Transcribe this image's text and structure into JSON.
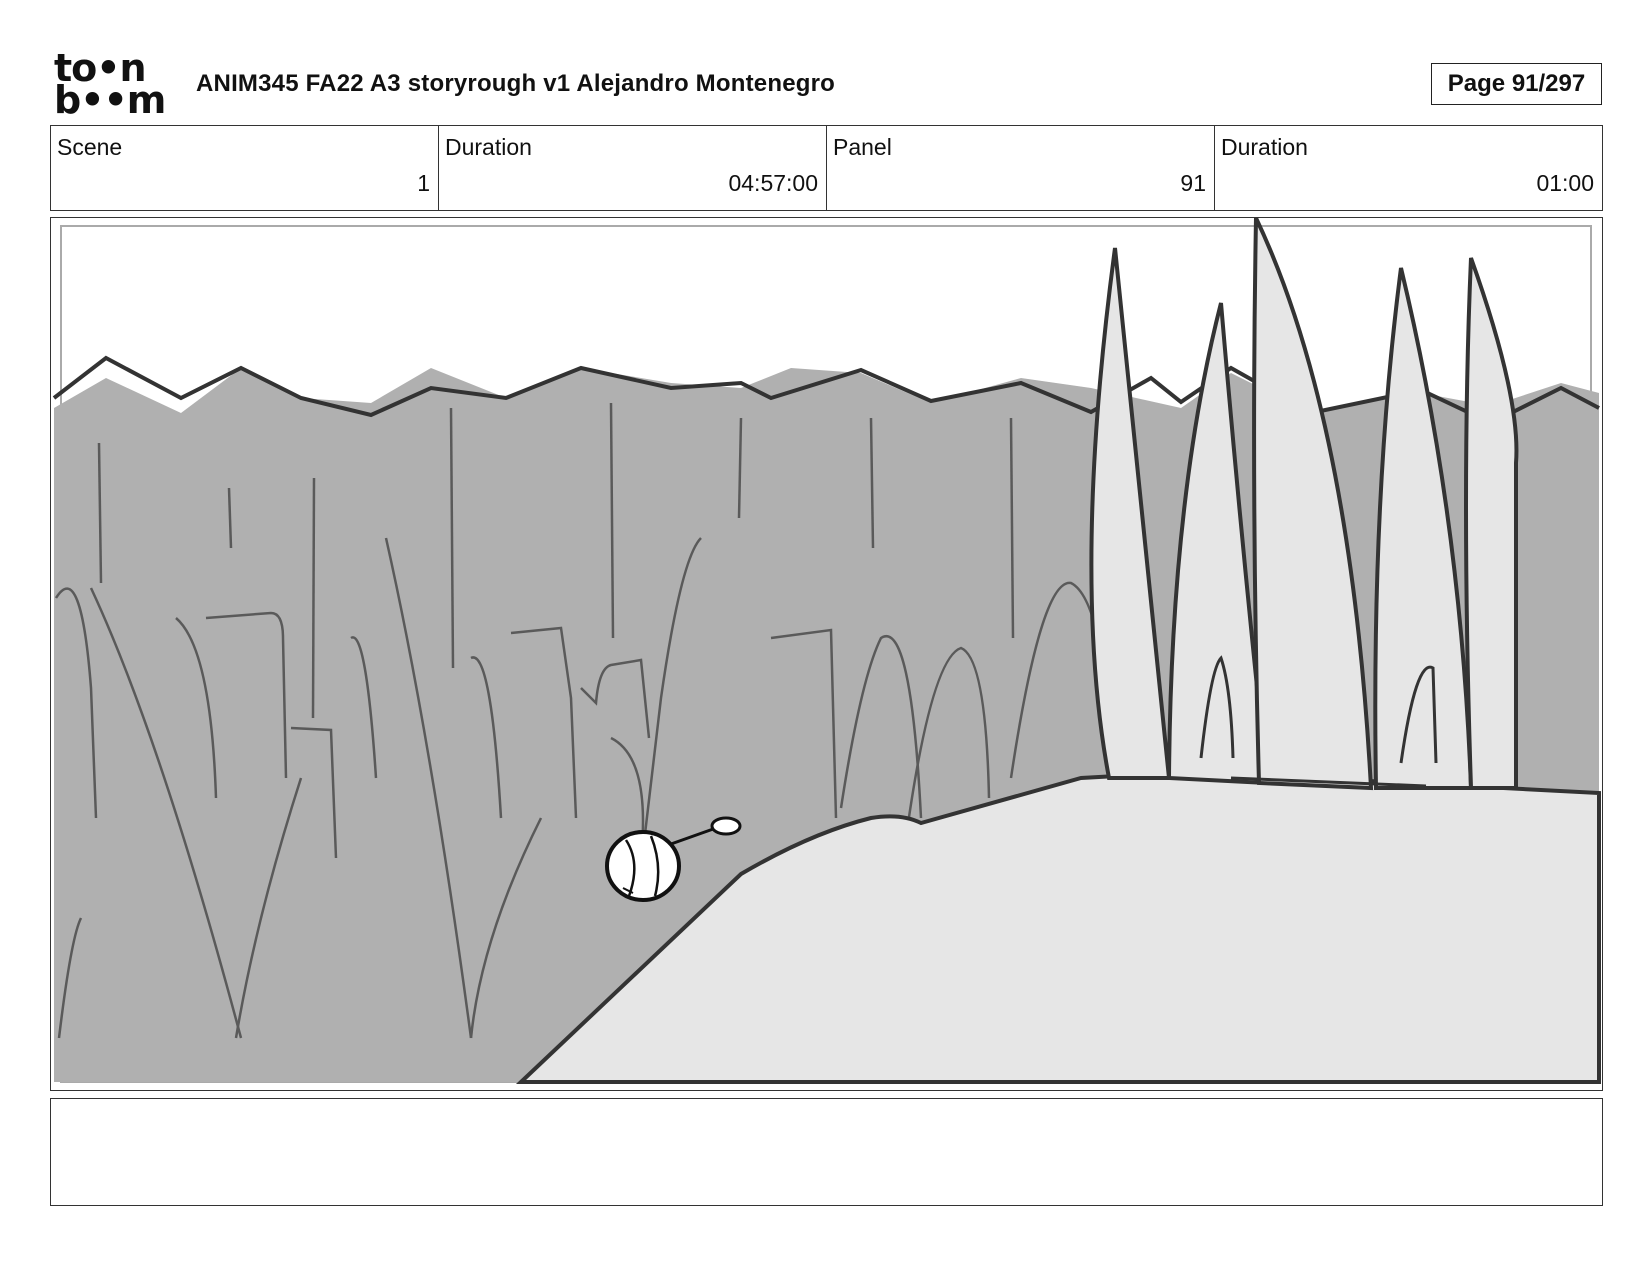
{
  "header": {
    "logo": {
      "line1": "to•n",
      "line2": "b••m"
    },
    "title": "ANIM345  FA22  A3 storyrough v1 Alejandro Montenegro",
    "page": "Page  91/297"
  },
  "info": [
    {
      "label": "Scene",
      "value": "1"
    },
    {
      "label": "Duration",
      "value": "04:57:00"
    },
    {
      "label": "Panel",
      "value": "91"
    },
    {
      "label": "Duration",
      "value": "01:00"
    }
  ],
  "colors": {
    "cliff": "#b0b0b0",
    "ground": "#e6e6e6",
    "line_dark": "#333333",
    "line_mid": "#5a5a5a"
  },
  "notes": {
    "text": ""
  }
}
